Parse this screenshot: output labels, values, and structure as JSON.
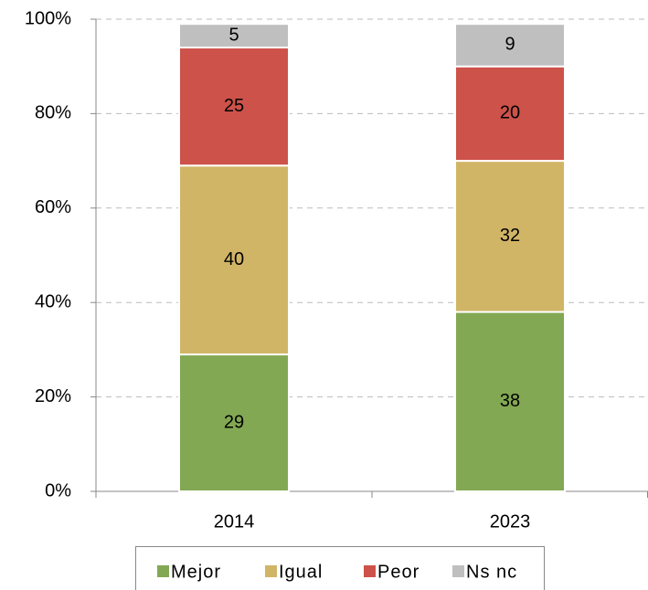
{
  "chart_data": {
    "type": "stacked_bar",
    "categories": [
      "2014",
      "2023"
    ],
    "series": [
      {
        "name": "Mejor",
        "color": "#83a853",
        "values": [
          29,
          38
        ]
      },
      {
        "name": "Igual",
        "color": "#d1b566",
        "values": [
          40,
          32
        ]
      },
      {
        "name": "Peor",
        "color": "#cd524a",
        "values": [
          25,
          20
        ]
      },
      {
        "name": "Ns nc",
        "color": "#bfbfbf",
        "values": [
          5,
          9
        ]
      }
    ],
    "ylim": [
      0,
      100
    ],
    "yticks": [
      {
        "value": 0,
        "label": "0%"
      },
      {
        "value": 20,
        "label": "20%"
      },
      {
        "value": 40,
        "label": "40%"
      },
      {
        "value": 60,
        "label": "60%"
      },
      {
        "value": 80,
        "label": "80%"
      },
      {
        "value": 100,
        "label": "100%"
      }
    ],
    "grid": true,
    "legend": "bottom"
  }
}
